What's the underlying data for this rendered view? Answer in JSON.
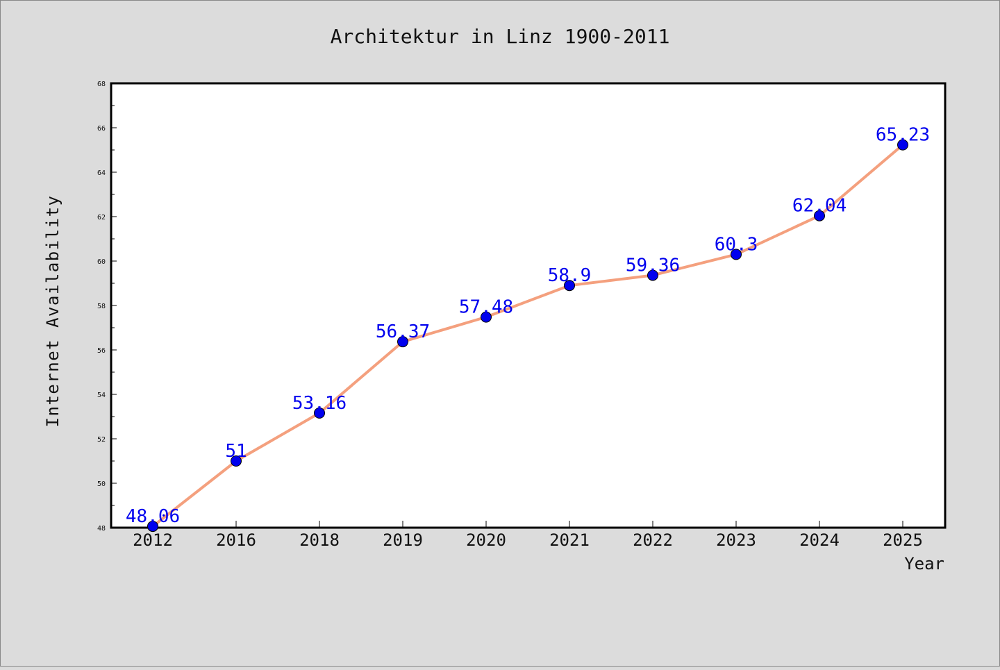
{
  "chart_data": {
    "type": "line",
    "title": "Architektur in Linz 1900-2011",
    "xlabel": "Year",
    "ylabel": "Internet Availability",
    "categories": [
      "2012",
      "2016",
      "2018",
      "2019",
      "2020",
      "2021",
      "2022",
      "2023",
      "2024",
      "2025"
    ],
    "series": [
      {
        "values": [
          48.06,
          51,
          53.16,
          56.37,
          57.48,
          58.9,
          59.36,
          60.3,
          62.04,
          65.23
        ],
        "labels": [
          "48.06",
          "51",
          "53.16",
          "56.37",
          "57.48",
          "58.9",
          "59.36",
          "60.3",
          "62.04",
          "65.23"
        ]
      }
    ],
    "ylim": [
      48,
      68
    ],
    "yticks": [
      "48",
      "50",
      "52",
      "54",
      "56",
      "58",
      "60",
      "62",
      "64",
      "66",
      "68"
    ],
    "grid": false,
    "legend": "none",
    "colors": {
      "background": "#dcdcdc",
      "plot_background": "#ffffff",
      "line": "#f4a07e",
      "marker": "#0000ee",
      "data_label": "#0000ee",
      "text": "#111111"
    }
  }
}
